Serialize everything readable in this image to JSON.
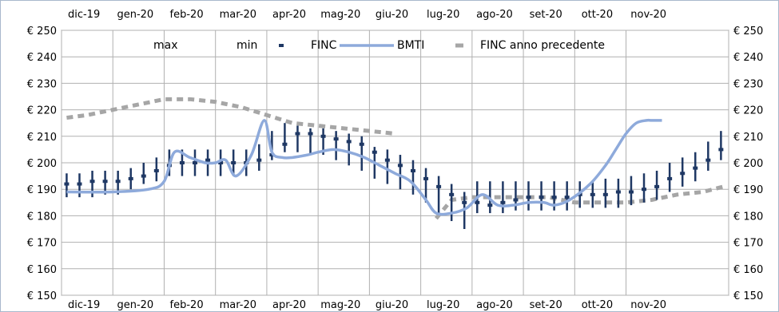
{
  "chart_data": {
    "type": "line",
    "title": "",
    "xlabel": "",
    "ylabel": "",
    "grid": true,
    "legend_position": "top",
    "x_ticks": [
      "dic-19",
      "gen-20",
      "feb-20",
      "mar-20",
      "apr-20",
      "mag-20",
      "giu-20",
      "lug-20",
      "ago-20",
      "set-20",
      "ott-20",
      "nov-20"
    ],
    "y_ticks": [
      "€ 250",
      "€ 240",
      "€ 230",
      "€ 220",
      "€ 210",
      "€ 200",
      "€ 190",
      "€ 180",
      "€ 170",
      "€ 160",
      "€ 150"
    ],
    "ylim": [
      150,
      250
    ],
    "legend": [
      "max",
      "min",
      "FINC",
      "BMTI",
      "FINC anno precedente"
    ],
    "colors": {
      "finc": "#1f3864",
      "bmti": "#8eaadb",
      "finc_prev": "#a6a6a6",
      "grid": "#b0b0b0",
      "frame": "#a8b8cc"
    },
    "series": [
      {
        "name": "FINC",
        "kind": "high-low-close",
        "x_index": [
          0.1,
          0.35,
          0.6,
          0.85,
          1.1,
          1.35,
          1.6,
          1.85,
          2.1,
          2.35,
          2.6,
          2.85,
          3.1,
          3.35,
          3.6,
          3.85,
          4.1,
          4.35,
          4.6,
          4.85,
          5.1,
          5.35,
          5.6,
          5.85,
          6.1,
          6.35,
          6.6,
          6.85,
          7.1,
          7.35,
          7.6,
          7.85,
          8.1,
          8.35,
          8.6,
          8.85,
          9.1,
          9.35,
          9.6,
          9.85,
          10.1,
          10.35,
          10.6,
          10.85,
          11.1,
          11.35,
          11.6,
          11.85,
          12.1,
          12.35,
          12.6,
          12.85
        ],
        "max": [
          196,
          196,
          197,
          197,
          197,
          198,
          200,
          202,
          205,
          205,
          205,
          205,
          205,
          205,
          205,
          207,
          212,
          215,
          214,
          213,
          213,
          212,
          211,
          210,
          206,
          205,
          203,
          201,
          198,
          195,
          192,
          189,
          193,
          193,
          193,
          193,
          193,
          193,
          193,
          193,
          193,
          193,
          194,
          194,
          195,
          196,
          197,
          200,
          202,
          204,
          208,
          212
        ],
        "min": [
          187,
          187,
          187,
          188,
          188,
          190,
          192,
          193,
          195,
          195,
          195,
          195,
          195,
          195,
          195,
          197,
          201,
          204,
          204,
          203,
          203,
          201,
          199,
          197,
          194,
          192,
          190,
          188,
          185,
          181,
          178,
          175,
          181,
          181,
          181,
          182,
          182,
          182,
          182,
          182,
          183,
          183,
          183,
          183,
          184,
          185,
          186,
          189,
          191,
          193,
          197,
          201
        ],
        "close": [
          192,
          192,
          193,
          193,
          193,
          194,
          195,
          197,
          199,
          200,
          200,
          201,
          200,
          200,
          200,
          201,
          203,
          207,
          211,
          211,
          210,
          209,
          208,
          207,
          204,
          201,
          199,
          197,
          194,
          191,
          188,
          185,
          185,
          184,
          185,
          186,
          187,
          187,
          187,
          187,
          188,
          188,
          188,
          189,
          189,
          190,
          191,
          194,
          196,
          198,
          201,
          205
        ]
      },
      {
        "name": "BMTI",
        "x": [
          0.1,
          1.0,
          1.7,
          2.0,
          2.2,
          2.5,
          2.8,
          3.0,
          3.2,
          3.4,
          3.7,
          3.95,
          4.1,
          4.3,
          4.5,
          4.8,
          5.0,
          5.3,
          5.6,
          5.9,
          6.2,
          6.5,
          6.8,
          7.1,
          7.3,
          7.6,
          7.9,
          8.2,
          8.5,
          8.8,
          9.1,
          9.4,
          9.6,
          9.9,
          10.3,
          10.6,
          10.8,
          11.0,
          11.2,
          11.4,
          11.5,
          11.7
        ],
        "values": [
          189,
          189,
          190,
          193,
          204,
          202,
          200,
          200,
          201,
          195,
          203,
          216,
          204,
          202,
          202,
          203,
          204,
          205,
          204,
          202,
          199,
          196,
          193,
          186,
          181,
          181,
          183,
          188,
          184,
          184,
          185,
          185,
          184,
          186,
          192,
          199,
          205,
          211,
          215,
          216,
          216,
          216
        ]
      },
      {
        "name": "FINC anno precedente",
        "x": [
          0.1,
          0.5,
          1.0,
          1.5,
          2.0,
          2.5,
          3.0,
          3.5,
          4.0,
          4.5,
          5.0,
          5.5,
          6.0,
          6.5,
          7.3,
          7.6,
          8.0,
          8.5,
          9.0,
          9.5,
          10.0,
          10.5,
          11.0,
          11.5,
          12.0,
          12.5,
          13.0
        ],
        "values": [
          217,
          218,
          220,
          222,
          224,
          224,
          223,
          221,
          218,
          215,
          214,
          213,
          212,
          211,
          179,
          186,
          187,
          187,
          187,
          187,
          185,
          185,
          185,
          186,
          188,
          189,
          191
        ]
      }
    ]
  }
}
